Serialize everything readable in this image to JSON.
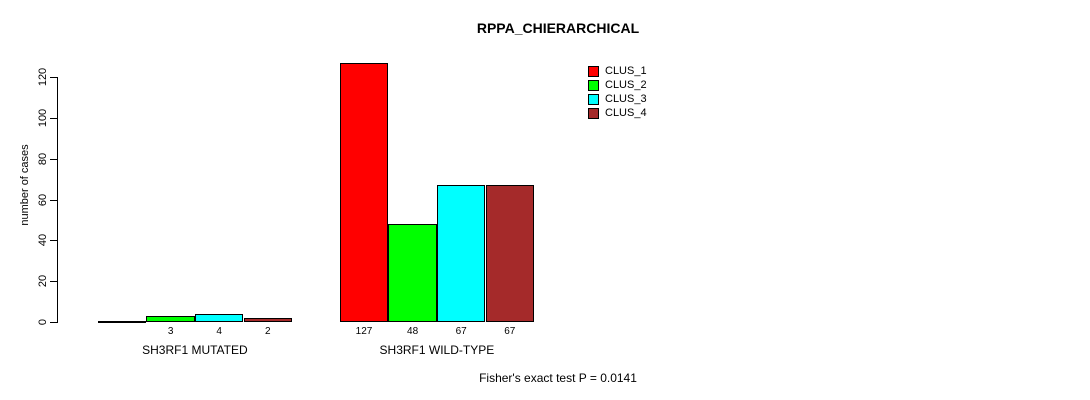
{
  "chart_data": {
    "type": "bar",
    "title": "RPPA_CHIERARCHICAL",
    "ylabel": "number of cases",
    "xlabel": "",
    "ylim": [
      0,
      120
    ],
    "yticks": [
      0,
      20,
      40,
      60,
      80,
      100,
      120
    ],
    "grid": false,
    "legend_position": "top-right",
    "categories": [
      "SH3RF1 MUTATED",
      "SH3RF1 WILD-TYPE"
    ],
    "series": [
      {
        "name": "CLUS_1",
        "color": "#FF0000",
        "values": [
          0,
          127
        ]
      },
      {
        "name": "CLUS_2",
        "color": "#00FF00",
        "values": [
          3,
          48
        ]
      },
      {
        "name": "CLUS_3",
        "color": "#00FFFF",
        "values": [
          4,
          67
        ]
      },
      {
        "name": "CLUS_4",
        "color": "#A52A2A",
        "values": [
          2,
          67
        ]
      }
    ],
    "bar_value_labels": [
      [
        "",
        "3",
        "4",
        "2"
      ],
      [
        "127",
        "48",
        "67",
        "67"
      ]
    ],
    "footnote": "Fisher's exact test P = 0.0141"
  }
}
